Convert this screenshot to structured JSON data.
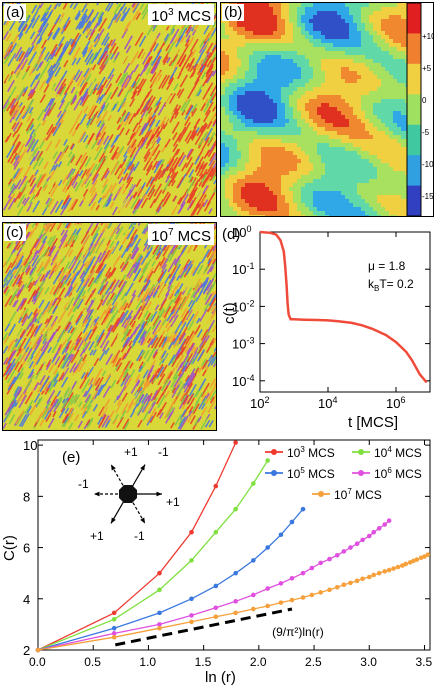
{
  "panels": {
    "a": {
      "label": "(a)",
      "mcs": "10",
      "mcs_exp": "3",
      "mcs_suffix": " MCS"
    },
    "b": {
      "label": "(b)",
      "colorbar_ticks": [
        "+10",
        "+5",
        "0",
        "-5",
        "-10",
        "-15"
      ]
    },
    "c": {
      "label": "(c)",
      "mcs": "10",
      "mcs_exp": "7",
      "mcs_suffix": " MCS"
    },
    "d": {
      "label": "(d)",
      "mu": "μ = 1.8",
      "kT_k": "k",
      "kT_sub": "B",
      "kT_rest": "T= 0.2"
    },
    "e": {
      "label": "(e)"
    }
  },
  "colors": {
    "lattice_red": "#e8402a",
    "lattice_orange": "#f29a30",
    "lattice_yellow": "#d8d838",
    "lattice_green": "#7cc84a",
    "lattice_blue": "#4a78e0",
    "lattice_purple": "#a050c8",
    "decay_line": "#f04a3a"
  },
  "inset": {
    "labels": [
      "+1",
      "-1",
      "-1",
      "+1",
      "+1",
      "-1"
    ]
  },
  "chart_data": [
    {
      "type": "line",
      "panel": "d",
      "xlabel": "t [MCS]",
      "ylabel": "c(t)",
      "xscale": "log",
      "yscale": "log",
      "xlim": [
        100,
        10000000
      ],
      "ylim": [
        5e-05,
        1.0
      ],
      "xtick_labels": [
        {
          "base": "10",
          "exp": "2"
        },
        {
          "base": "10",
          "exp": "4"
        },
        {
          "base": "10",
          "exp": "6"
        }
      ],
      "ytick_labels": [
        {
          "base": "10",
          "exp": "0"
        },
        {
          "base": "10",
          "exp": "-1"
        },
        {
          "base": "10",
          "exp": "-2"
        },
        {
          "base": "10",
          "exp": "-3"
        },
        {
          "base": "10",
          "exp": "-4"
        }
      ],
      "series": [
        {
          "x": [
            100,
            200,
            300,
            400,
            500,
            550,
            600,
            650,
            700,
            800,
            1000,
            2000,
            5000,
            10000,
            20000,
            50000,
            100000,
            200000,
            500000,
            1000000,
            2000000,
            3000000,
            5000000,
            8000000
          ],
          "y": [
            1.0,
            0.95,
            0.85,
            0.6,
            0.3,
            0.12,
            0.04,
            0.012,
            0.006,
            0.0045,
            0.0045,
            0.0044,
            0.0043,
            0.0042,
            0.004,
            0.0036,
            0.0031,
            0.0025,
            0.0017,
            0.0011,
            0.0006,
            0.00035,
            0.00015,
            9e-05
          ]
        }
      ],
      "annotations": [
        "μ = 1.8",
        "kBT= 0.2"
      ]
    },
    {
      "type": "line",
      "panel": "e",
      "xlabel": "ln (r)",
      "ylabel": "C(r)",
      "xlim": [
        0,
        3.55
      ],
      "ylim": [
        2,
        10.2
      ],
      "xticks": [
        "0.0",
        "0.5",
        "1.0",
        "1.5",
        "2.0",
        "2.5",
        "3.0",
        "3.5"
      ],
      "yticks": [
        "2",
        "4",
        "6",
        "8",
        "10"
      ],
      "series": [
        {
          "name": "10^3 MCS",
          "label_base": "10",
          "label_exp": "3",
          "label_suffix": " MCS",
          "color": "#f03a30",
          "x": [
            0,
            0.69,
            1.1,
            1.39,
            1.61,
            1.79
          ],
          "y": [
            2.0,
            3.45,
            5.0,
            6.6,
            8.4,
            10.1
          ]
        },
        {
          "name": "10^4 MCS",
          "label_base": "10",
          "label_exp": "4",
          "label_suffix": " MCS",
          "color": "#80e040",
          "x": [
            0,
            0.69,
            1.1,
            1.39,
            1.61,
            1.79,
            1.95,
            2.08
          ],
          "y": [
            2.0,
            3.2,
            4.35,
            5.5,
            6.6,
            7.5,
            8.5,
            9.4
          ]
        },
        {
          "name": "10^5 MCS",
          "label_base": "10",
          "label_exp": "5",
          "label_suffix": " MCS",
          "color": "#3a78e0",
          "x": [
            0,
            0.69,
            1.1,
            1.39,
            1.61,
            1.79,
            1.95,
            2.08,
            2.2,
            2.3,
            2.4
          ],
          "y": [
            2.0,
            2.85,
            3.45,
            4.0,
            4.5,
            5.0,
            5.5,
            6.0,
            6.5,
            7.0,
            7.5
          ]
        },
        {
          "name": "10^6 MCS",
          "label_base": "10",
          "label_exp": "6",
          "label_suffix": " MCS",
          "color": "#e050e0",
          "x": [
            0,
            0.69,
            1.1,
            1.39,
            1.61,
            1.79,
            1.95,
            2.08,
            2.2,
            2.3,
            2.4,
            2.48,
            2.56,
            2.64,
            2.71,
            2.77,
            2.83,
            2.89,
            2.94,
            3.0,
            3.04,
            3.09,
            3.14,
            3.18
          ],
          "y": [
            2.0,
            2.65,
            3.0,
            3.35,
            3.65,
            3.9,
            4.15,
            4.4,
            4.6,
            4.8,
            5.0,
            5.2,
            5.4,
            5.55,
            5.7,
            5.85,
            6.0,
            6.15,
            6.3,
            6.45,
            6.6,
            6.75,
            6.9,
            7.05
          ]
        },
        {
          "name": "10^7 MCS",
          "label_base": "10",
          "label_exp": "7",
          "label_suffix": " MCS",
          "color": "#f5a03a",
          "x": [
            0,
            0.69,
            1.1,
            1.39,
            1.61,
            1.79,
            1.95,
            2.08,
            2.2,
            2.3,
            2.4,
            2.48,
            2.56,
            2.64,
            2.71,
            2.77,
            2.83,
            2.89,
            2.94,
            3.0,
            3.04,
            3.09,
            3.14,
            3.18,
            3.22,
            3.26,
            3.3,
            3.33,
            3.37,
            3.4,
            3.43,
            3.47,
            3.5,
            3.53
          ],
          "y": [
            2.0,
            2.5,
            2.85,
            3.1,
            3.3,
            3.45,
            3.6,
            3.72,
            3.85,
            3.95,
            4.05,
            4.15,
            4.25,
            4.35,
            4.45,
            4.55,
            4.62,
            4.7,
            4.78,
            4.85,
            4.93,
            5.0,
            5.07,
            5.12,
            5.18,
            5.24,
            5.3,
            5.36,
            5.42,
            5.48,
            5.53,
            5.6,
            5.65,
            5.72
          ]
        }
      ],
      "reference_line": {
        "label": "(9/π²)ln(r)",
        "x": [
          0.7,
          2.3
        ],
        "y": [
          2.2,
          3.6
        ]
      }
    }
  ]
}
